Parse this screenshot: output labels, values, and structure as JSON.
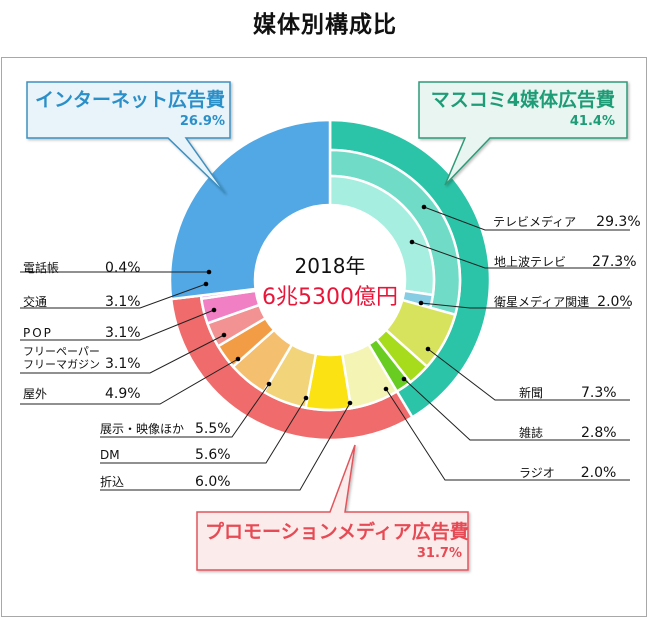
{
  "title": "媒体別構成比",
  "center": {
    "year": "2018年",
    "total": "6兆5300億円"
  },
  "categories": {
    "internet": {
      "label": "インターネット広告費",
      "pct": "26.9%",
      "color": "#52a8e5",
      "text_color": "#2b8fc8",
      "box_bg": "#e8f3fa",
      "box_border": "#3c8fbf"
    },
    "mass": {
      "label": "マスコミ4媒体広告費",
      "pct": "41.4%",
      "color": "#2bc4a8",
      "text_color": "#1e9c76",
      "box_bg": "#e8f5f1",
      "box_border": "#2f9a78"
    },
    "promo": {
      "label": "プロモーションメディア広告費",
      "pct": "31.7%",
      "color": "#f06b6b",
      "text_color": "#e64b55",
      "box_bg": "#fcebeb",
      "box_border": "#e0565c"
    }
  },
  "tv_media": {
    "label": "テレビメディア",
    "pct": "29.3%",
    "value": 29.3,
    "color": "#70dbc6"
  },
  "chart_data": {
    "type": "pie",
    "title": "媒体別構成比",
    "subtitle": "2018年 6兆5300億円",
    "groups": [
      {
        "name": "マスコミ4媒体広告費",
        "value": 41.4
      },
      {
        "name": "プロモーションメディア広告費",
        "value": 31.7
      },
      {
        "name": "インターネット広告費",
        "value": 26.9
      }
    ],
    "subgroups": [
      {
        "name": "テレビメディア",
        "value": 29.3,
        "parent": "マスコミ4媒体広告費"
      }
    ],
    "segments": [
      {
        "name": "地上波テレビ",
        "value": 27.3,
        "group": "mass",
        "color": "#a6eedf"
      },
      {
        "name": "衛星メディア関連",
        "value": 2.0,
        "group": "mass",
        "color": "#86cde3"
      },
      {
        "name": "新聞",
        "value": 7.3,
        "group": "mass",
        "color": "#d7e35c"
      },
      {
        "name": "雑誌",
        "value": 2.8,
        "group": "mass",
        "color": "#a6dc1b"
      },
      {
        "name": "ラジオ",
        "value": 2.0,
        "group": "mass",
        "color": "#68cd20"
      },
      {
        "name": "折込",
        "value": 6.0,
        "group": "promo",
        "color": "#f4f4b4"
      },
      {
        "name": "DM",
        "value": 5.6,
        "group": "promo",
        "color": "#fae213"
      },
      {
        "name": "展示・映像ほか",
        "value": 5.5,
        "group": "promo",
        "color": "#f2d47a"
      },
      {
        "name": "屋外",
        "value": 4.9,
        "group": "promo",
        "color": "#f5bf70"
      },
      {
        "name": "フリーペーパー フリーマガジン",
        "value": 3.1,
        "group": "promo",
        "color": "#f29d45"
      },
      {
        "name": "POP",
        "value": 3.1,
        "group": "promo",
        "color": "#f39292"
      },
      {
        "name": "交通",
        "value": 3.1,
        "group": "promo",
        "color": "#f07fc3"
      },
      {
        "name": "電話帳",
        "value": 0.4,
        "group": "promo",
        "color": "#e0a0e8"
      },
      {
        "name": "インターネット広告費",
        "value": 26.9,
        "group": "internet",
        "color": "#52a8e5"
      }
    ]
  },
  "labels": {
    "tv_media": {
      "name": "テレビメディア",
      "pct": "29.3%"
    },
    "terrestrial": {
      "name": "地上波テレビ",
      "pct": "27.3%"
    },
    "satellite": {
      "name": "衛星メディア関連",
      "pct": "2.0%"
    },
    "newspaper": {
      "name": "新聞",
      "pct": "7.3%"
    },
    "magazine": {
      "name": "雑誌",
      "pct": "2.8%"
    },
    "radio": {
      "name": "ラジオ",
      "pct": "2.0%"
    },
    "phonebook": {
      "name": "電話帳",
      "pct": "0.4%"
    },
    "transit": {
      "name": "交通",
      "pct": "3.1%"
    },
    "pop": {
      "name": "POP",
      "pct": "3.1%"
    },
    "freepaper1": {
      "name": "フリーペーパー",
      "name2": "フリーマガジン",
      "pct": "3.1%"
    },
    "outdoor": {
      "name": "屋外",
      "pct": "4.9%"
    },
    "exhibit": {
      "name": "展示・映像ほか",
      "pct": "5.5%"
    },
    "dm": {
      "name": "DM",
      "pct": "5.6%"
    },
    "insert": {
      "name": "折込",
      "pct": "6.0%"
    }
  }
}
